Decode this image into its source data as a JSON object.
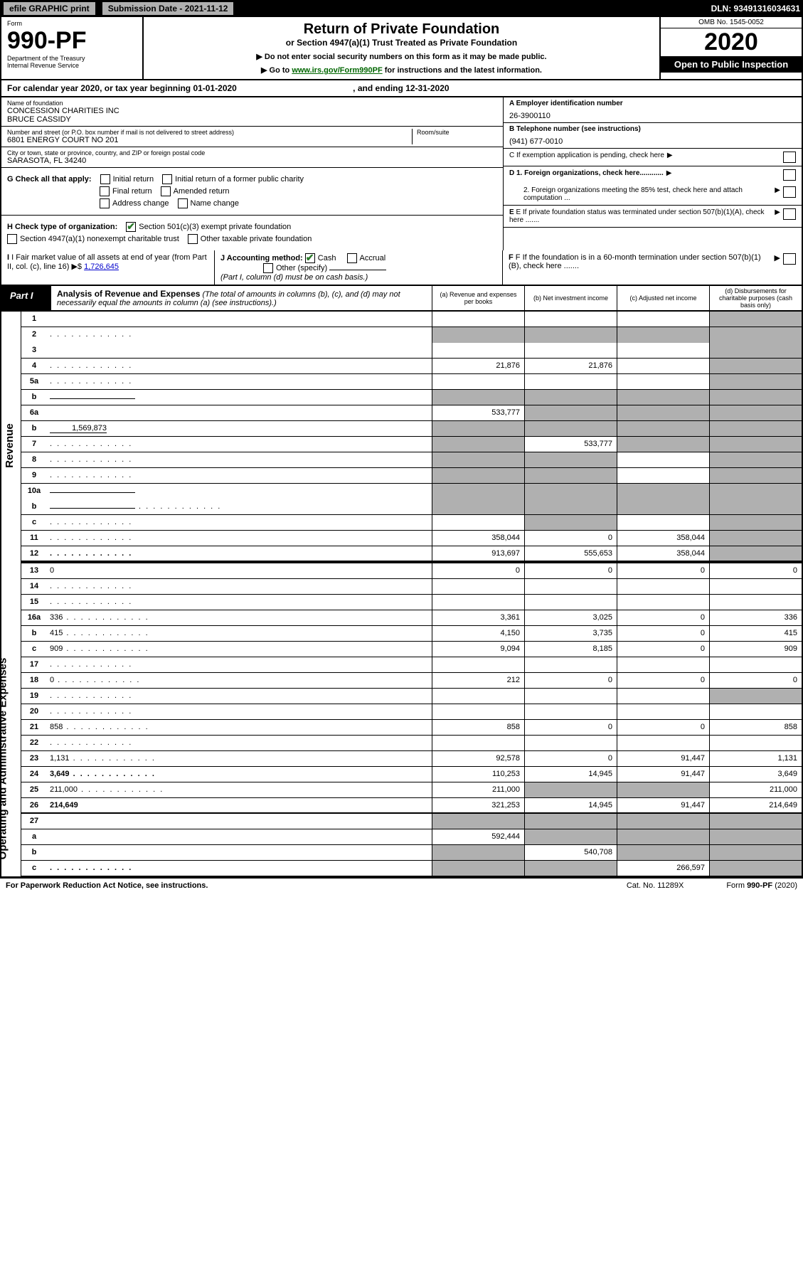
{
  "topbar": {
    "efile": "efile GRAPHIC print",
    "submission": "Submission Date - 2021-11-12",
    "dln": "DLN: 93491316034631"
  },
  "header": {
    "form_word": "Form",
    "form_num": "990-PF",
    "dept": "Department of the Treasury",
    "irs": "Internal Revenue Service",
    "title": "Return of Private Foundation",
    "sub1": "or Section 4947(a)(1) Trust Treated as Private Foundation",
    "sub2a": "▶ Do not enter social security numbers on this form as it may be made public.",
    "sub2b": "▶ Go to ",
    "sub2_link": "www.irs.gov/Form990PF",
    "sub2c": " for instructions and the latest information.",
    "omb": "OMB No. 1545-0052",
    "year": "2020",
    "open": "Open to Public Inspection"
  },
  "cal_year": {
    "prefix": "For calendar year 2020, or tax year beginning ",
    "begin": "01-01-2020",
    "mid": " , and ending ",
    "end": "12-31-2020"
  },
  "info": {
    "name_label": "Name of foundation",
    "name1": "CONCESSION CHARITIES INC",
    "name2": "BRUCE CASSIDY",
    "addr_label": "Number and street (or P.O. box number if mail is not delivered to street address)",
    "addr": "6801 ENERGY COURT NO 201",
    "room_label": "Room/suite",
    "city_label": "City or town, state or province, country, and ZIP or foreign postal code",
    "city": "SARASOTA, FL  34240",
    "a_label": "A Employer identification number",
    "a_val": "26-3900110",
    "b_label": "B Telephone number (see instructions)",
    "b_val": "(941) 677-0010",
    "c_label": "C If exemption application is pending, check here",
    "d1": "D 1. Foreign organizations, check here............",
    "d2": "2. Foreign organizations meeting the 85% test, check here and attach computation ...",
    "e": "E If private foundation status was terminated under section 507(b)(1)(A), check here .......",
    "f": "F If the foundation is in a 60-month termination under section 507(b)(1)(B), check here .......",
    "g_label": "G Check all that apply:",
    "g_opts": [
      "Initial return",
      "Initial return of a former public charity",
      "Final return",
      "Amended return",
      "Address change",
      "Name change"
    ],
    "h_label": "H Check type of organization:",
    "h1": "Section 501(c)(3) exempt private foundation",
    "h2": "Section 4947(a)(1) nonexempt charitable trust",
    "h3": "Other taxable private foundation",
    "i_label": "I Fair market value of all assets at end of year (from Part II, col. (c), line 16) ▶$ ",
    "i_val": "1,726,645",
    "j_label": "J Accounting method:",
    "j_cash": "Cash",
    "j_accrual": "Accrual",
    "j_other": "Other (specify)",
    "j_note": "(Part I, column (d) must be on cash basis.)"
  },
  "part1": {
    "label": "Part I",
    "title": "Analysis of Revenue and Expenses",
    "title_note": " (The total of amounts in columns (b), (c), and (d) may not necessarily equal the amounts in column (a) (see instructions).)",
    "col_a": "(a) Revenue and expenses per books",
    "col_b": "(b) Net investment income",
    "col_c": "(c) Adjusted net income",
    "col_d": "(d) Disbursements for charitable purposes (cash basis only)"
  },
  "sides": {
    "revenue": "Revenue",
    "expenses": "Operating and Administrative Expenses"
  },
  "rows": [
    {
      "n": "1",
      "d": "",
      "a": "",
      "b": "",
      "c": "",
      "shade_d": true
    },
    {
      "n": "2",
      "d": "",
      "a": "",
      "b": "",
      "c": "",
      "shade_all": true,
      "noborder": true,
      "dots": true
    },
    {
      "n": "3",
      "d": "",
      "a": "",
      "b": "",
      "c": "",
      "shade_d": true
    },
    {
      "n": "4",
      "d": "",
      "a": "21,876",
      "b": "21,876",
      "c": "",
      "shade_d": true,
      "dots": true
    },
    {
      "n": "5a",
      "d": "",
      "a": "",
      "b": "",
      "c": "",
      "shade_d": true,
      "dots": true
    },
    {
      "n": "b",
      "d": "",
      "a": "",
      "b": "",
      "c": "",
      "shade_all": true,
      "inline_blank": true
    },
    {
      "n": "6a",
      "d": "",
      "a": "533,777",
      "b": "",
      "c": "",
      "shade_bcd": true
    },
    {
      "n": "b",
      "d": "",
      "a": "",
      "b": "",
      "c": "",
      "shade_all": true,
      "inline_val": "1,569,873"
    },
    {
      "n": "7",
      "d": "",
      "a": "",
      "b": "533,777",
      "c": "",
      "shade_a": true,
      "shade_cd": true,
      "dots": true
    },
    {
      "n": "8",
      "d": "",
      "a": "",
      "b": "",
      "c": "",
      "shade_ab": true,
      "shade_d": true,
      "dots": true
    },
    {
      "n": "9",
      "d": "",
      "a": "",
      "b": "",
      "c": "",
      "shade_ab": true,
      "shade_d": true,
      "dots": true
    },
    {
      "n": "10a",
      "d": "",
      "a": "",
      "b": "",
      "c": "",
      "shade_all": true,
      "inline_blank": true,
      "noborder": true
    },
    {
      "n": "b",
      "d": "",
      "a": "",
      "b": "",
      "c": "",
      "shade_all": true,
      "inline_blank": true,
      "dots": true
    },
    {
      "n": "c",
      "d": "",
      "a": "",
      "b": "",
      "c": "",
      "shade_b": true,
      "shade_d": true,
      "dots": true
    },
    {
      "n": "11",
      "d": "",
      "a": "358,044",
      "b": "0",
      "c": "358,044",
      "shade_d": true,
      "dots": true
    },
    {
      "n": "12",
      "d": "",
      "a": "913,697",
      "b": "555,653",
      "c": "358,044",
      "shade_d": true,
      "bold": true,
      "dots": true,
      "thick": true
    },
    {
      "n": "13",
      "d": "0",
      "a": "0",
      "b": "0",
      "c": "0"
    },
    {
      "n": "14",
      "d": "",
      "a": "",
      "b": "",
      "c": "",
      "dots": true
    },
    {
      "n": "15",
      "d": "",
      "a": "",
      "b": "",
      "c": "",
      "dots": true
    },
    {
      "n": "16a",
      "d": "336",
      "a": "3,361",
      "b": "3,025",
      "c": "0",
      "dots": true
    },
    {
      "n": "b",
      "d": "415",
      "a": "4,150",
      "b": "3,735",
      "c": "0",
      "dots": true
    },
    {
      "n": "c",
      "d": "909",
      "a": "9,094",
      "b": "8,185",
      "c": "0",
      "dots": true
    },
    {
      "n": "17",
      "d": "",
      "a": "",
      "b": "",
      "c": "",
      "dots": true
    },
    {
      "n": "18",
      "d": "0",
      "a": "212",
      "b": "0",
      "c": "0",
      "dots": true
    },
    {
      "n": "19",
      "d": "",
      "a": "",
      "b": "",
      "c": "",
      "shade_d": true,
      "dots": true
    },
    {
      "n": "20",
      "d": "",
      "a": "",
      "b": "",
      "c": "",
      "dots": true
    },
    {
      "n": "21",
      "d": "858",
      "a": "858",
      "b": "0",
      "c": "0",
      "dots": true
    },
    {
      "n": "22",
      "d": "",
      "a": "",
      "b": "",
      "c": "",
      "dots": true
    },
    {
      "n": "23",
      "d": "1,131",
      "a": "92,578",
      "b": "0",
      "c": "91,447",
      "dots": true
    },
    {
      "n": "24",
      "d": "3,649",
      "a": "110,253",
      "b": "14,945",
      "c": "91,447",
      "bold": true,
      "dots": true
    },
    {
      "n": "25",
      "d": "211,000",
      "a": "211,000",
      "b": "",
      "c": "",
      "shade_bc": true,
      "dots": true
    },
    {
      "n": "26",
      "d": "214,649",
      "a": "321,253",
      "b": "14,945",
      "c": "91,447",
      "bold": true,
      "thick": true
    },
    {
      "n": "27",
      "d": "",
      "a": "",
      "b": "",
      "c": "",
      "shade_all": true
    },
    {
      "n": "a",
      "d": "",
      "a": "592,444",
      "b": "",
      "c": "",
      "shade_bcd": true,
      "bold": true
    },
    {
      "n": "b",
      "d": "",
      "a": "",
      "b": "540,708",
      "c": "",
      "shade_a": true,
      "shade_cd": true,
      "bold": true
    },
    {
      "n": "c",
      "d": "",
      "a": "",
      "b": "",
      "c": "266,597",
      "shade_ab": true,
      "shade_d": true,
      "bold": true,
      "dots": true
    }
  ],
  "footer": {
    "left": "For Paperwork Reduction Act Notice, see instructions.",
    "cat": "Cat. No. 11289X",
    "form": "Form 990-PF (2020)"
  }
}
